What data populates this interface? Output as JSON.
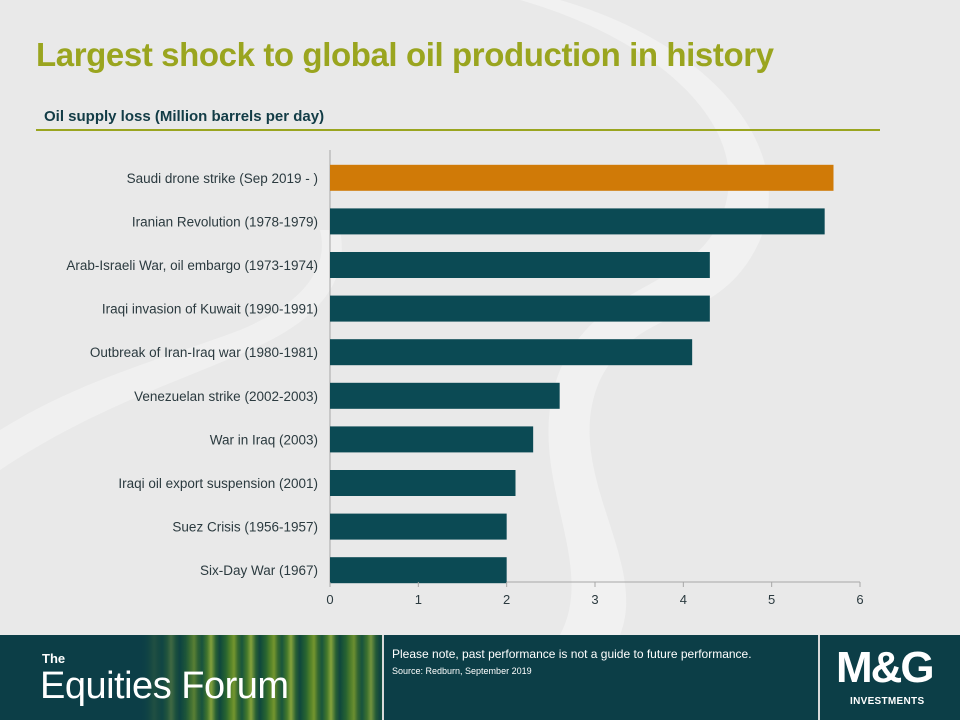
{
  "title": "Largest shock to global oil production in history",
  "subtitle": "Oil supply loss (Million barrels per day)",
  "colors": {
    "highlight": "#d07a07",
    "bar": "#0b4a54",
    "accent": "#9aa51f",
    "footer": "#0c3e47"
  },
  "chart_data": {
    "type": "bar",
    "orientation": "horizontal",
    "categories": [
      "Saudi drone strike (Sep 2019 - )",
      "Iranian Revolution (1978-1979)",
      "Arab-Israeli War, oil embargo (1973-1974)",
      "Iraqi invasion of Kuwait (1990-1991)",
      "Outbreak of Iran-Iraq war (1980-1981)",
      "Venezuelan strike (2002-2003)",
      "War in Iraq (2003)",
      "Iraqi oil export suspension (2001)",
      "Suez Crisis (1956-1957)",
      "Six-Day War (1967)"
    ],
    "values": [
      5.7,
      5.6,
      4.3,
      4.3,
      4.1,
      2.6,
      2.3,
      2.1,
      2.0,
      2.0
    ],
    "highlighted_index": 0,
    "xlim": [
      0,
      6
    ],
    "xticks": [
      "0",
      "1",
      "2",
      "3",
      "4",
      "5",
      "6"
    ],
    "grid": false
  },
  "footer": {
    "brand_prefix": "The",
    "brand_name": "Equities Forum",
    "disclaimer": "Please note, past performance  is not a guide to future performance.",
    "source": "Source: Redburn, September 2019",
    "logo_main": "M&G",
    "logo_sub": "INVESTMENTS"
  }
}
